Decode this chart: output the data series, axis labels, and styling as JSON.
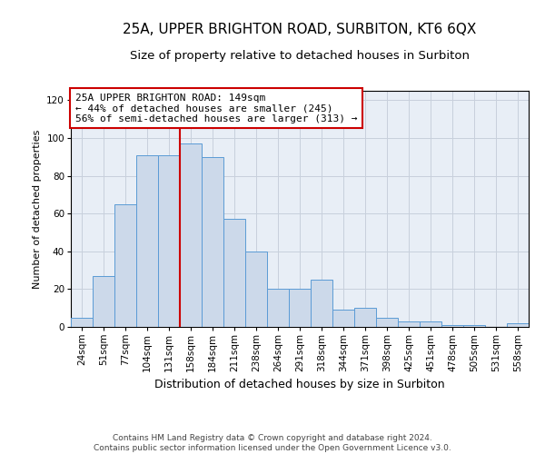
{
  "title_main": "25A, UPPER BRIGHTON ROAD, SURBITON, KT6 6QX",
  "title_sub": "Size of property relative to detached houses in Surbiton",
  "xlabel": "Distribution of detached houses by size in Surbiton",
  "ylabel": "Number of detached properties",
  "categories": [
    "24sqm",
    "51sqm",
    "77sqm",
    "104sqm",
    "131sqm",
    "158sqm",
    "184sqm",
    "211sqm",
    "238sqm",
    "264sqm",
    "291sqm",
    "318sqm",
    "344sqm",
    "371sqm",
    "398sqm",
    "425sqm",
    "451sqm",
    "478sqm",
    "505sqm",
    "531sqm",
    "558sqm"
  ],
  "values": [
    5,
    27,
    65,
    91,
    91,
    97,
    90,
    57,
    40,
    20,
    20,
    25,
    9,
    10,
    5,
    3,
    3,
    1,
    1,
    0,
    2
  ],
  "bar_color": "#ccd9ea",
  "bar_edge_color": "#5b9bd5",
  "vline_x": 4.5,
  "vline_color": "#cc0000",
  "annotation_line1": "25A UPPER BRIGHTON ROAD: 149sqm",
  "annotation_line2": "← 44% of detached houses are smaller (245)",
  "annotation_line3": "56% of semi-detached houses are larger (313) →",
  "annotation_box_facecolor": "#ffffff",
  "annotation_box_edgecolor": "#cc0000",
  "ylim": [
    0,
    125
  ],
  "yticks": [
    0,
    20,
    40,
    60,
    80,
    100,
    120
  ],
  "grid_color": "#c8d0dc",
  "bg_color": "#e8eef6",
  "footer_text": "Contains HM Land Registry data © Crown copyright and database right 2024.\nContains public sector information licensed under the Open Government Licence v3.0.",
  "title_main_fontsize": 11,
  "title_sub_fontsize": 9.5,
  "ylabel_fontsize": 8,
  "xlabel_fontsize": 9,
  "tick_fontsize": 7.5,
  "annotation_fontsize": 8,
  "footer_fontsize": 6.5
}
